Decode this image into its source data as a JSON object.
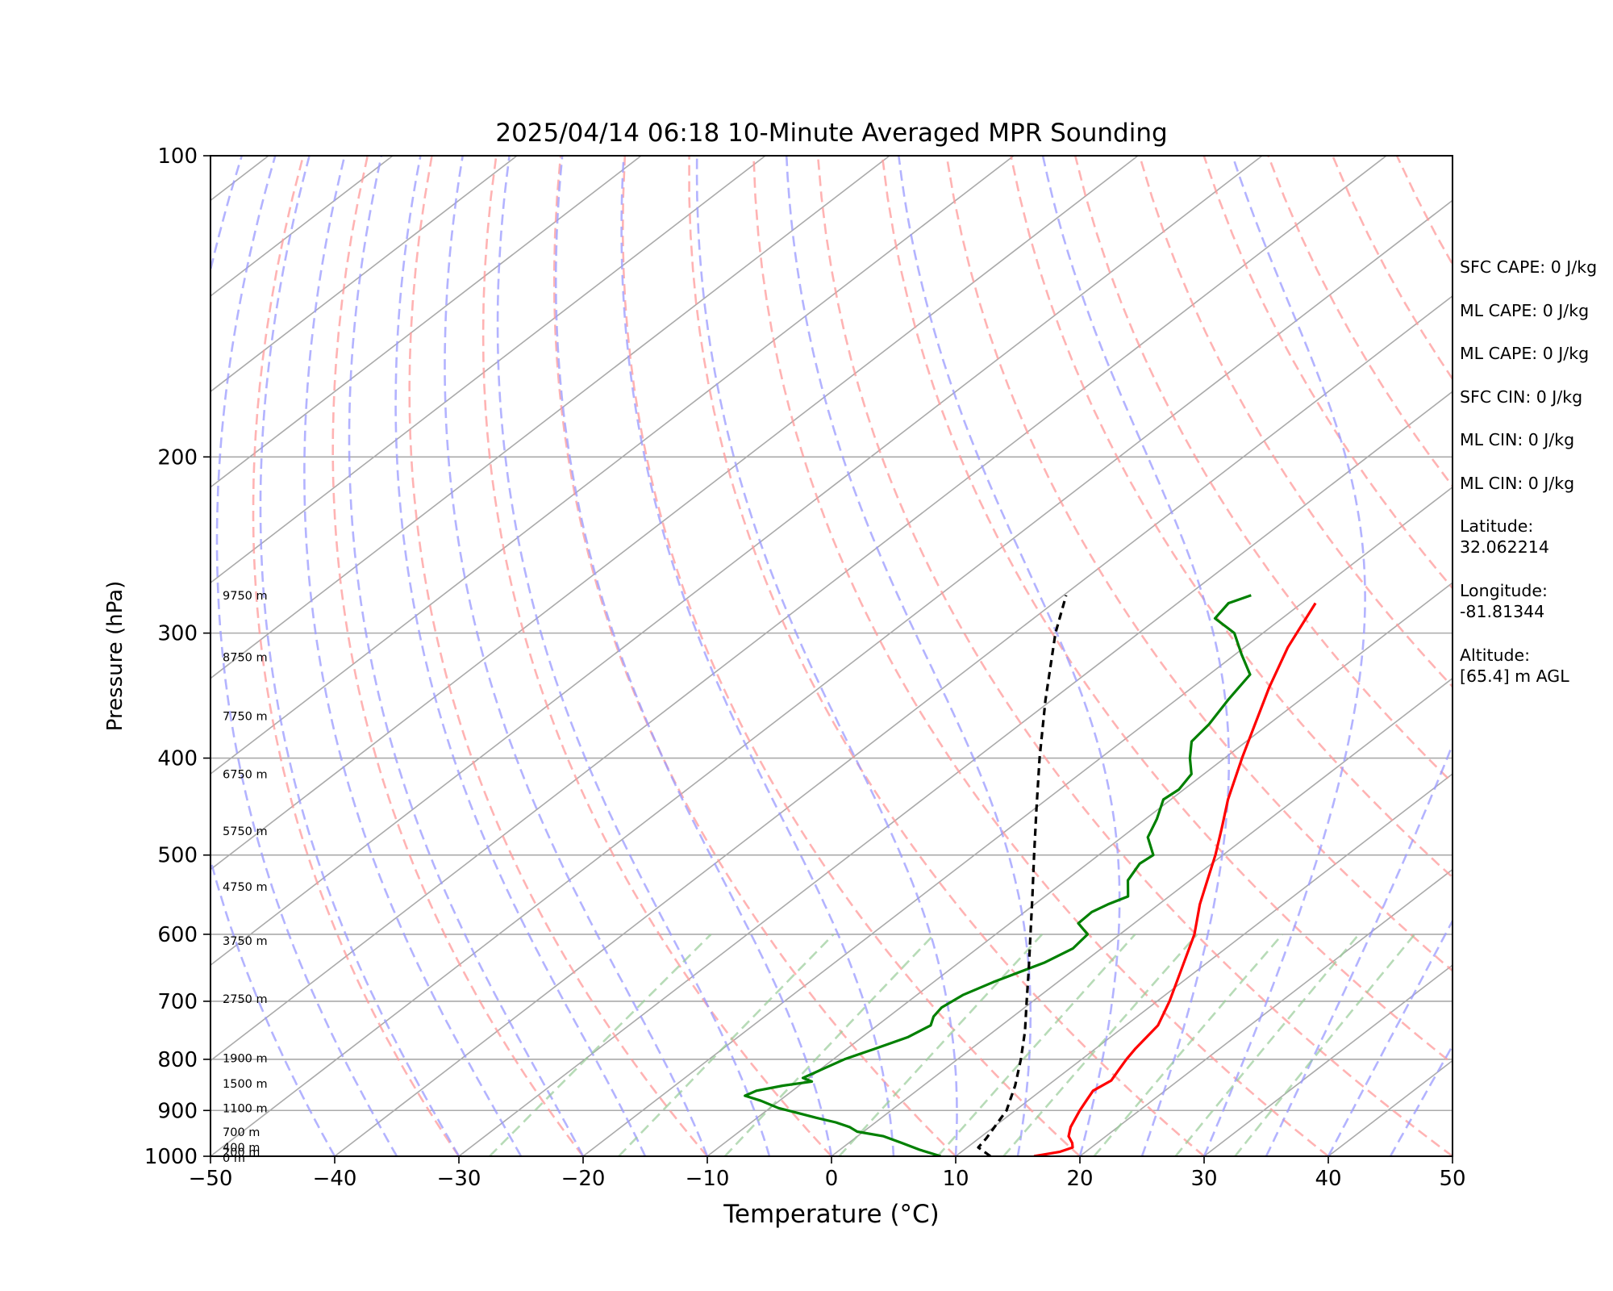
{
  "chart_data": {
    "type": "line",
    "diagram": "skew-T log-P",
    "title": "2025/04/14 06:18 10-Minute Averaged MPR Sounding",
    "xlabel": "Temperature (°C)",
    "ylabel": "Pressure (hPa)",
    "xlim": [
      -50,
      50
    ],
    "ylim": [
      1000,
      100
    ],
    "y_scale": "log",
    "x_ticks": [
      "−50",
      "−40",
      "−30",
      "−20",
      "−10",
      "0",
      "10",
      "20",
      "30",
      "40",
      "50"
    ],
    "y_ticks": [
      "100",
      "200",
      "300",
      "400",
      "500",
      "600",
      "700",
      "800",
      "900",
      "1000"
    ],
    "grid": true,
    "series": [
      {
        "color": "#ff0000",
        "points": [
          [
            1000,
            16.3
          ],
          [
            990,
            17.9
          ],
          [
            980,
            18.5
          ],
          [
            970,
            18.0
          ],
          [
            955,
            17.0
          ],
          [
            935,
            16.2
          ],
          [
            900,
            15.2
          ],
          [
            880,
            14.7
          ],
          [
            860,
            14.2
          ],
          [
            840,
            14.6
          ],
          [
            820,
            14.1
          ],
          [
            800,
            13.6
          ],
          [
            780,
            13.2
          ],
          [
            760,
            12.9
          ],
          [
            740,
            12.6
          ],
          [
            700,
            11.0
          ],
          [
            650,
            8.6
          ],
          [
            600,
            6.0
          ],
          [
            560,
            3.3
          ],
          [
            530,
            1.4
          ],
          [
            500,
            -0.6
          ],
          [
            470,
            -2.9
          ],
          [
            440,
            -5.4
          ],
          [
            400,
            -8.6
          ],
          [
            370,
            -11.1
          ],
          [
            340,
            -13.8
          ],
          [
            310,
            -16.5
          ],
          [
            280,
            -18.9
          ]
        ]
      },
      {
        "color": "#008000",
        "points": [
          [
            1000,
            8.8
          ],
          [
            985,
            6.4
          ],
          [
            970,
            4.3
          ],
          [
            955,
            2.1
          ],
          [
            945,
            -0.5
          ],
          [
            935,
            -1.6
          ],
          [
            925,
            -3.2
          ],
          [
            915,
            -5.3
          ],
          [
            905,
            -7.3
          ],
          [
            895,
            -9.3
          ],
          [
            880,
            -11.5
          ],
          [
            870,
            -13.3
          ],
          [
            860,
            -12.9
          ],
          [
            850,
            -11.3
          ],
          [
            842,
            -9.4
          ],
          [
            835,
            -10.5
          ],
          [
            820,
            -9.9
          ],
          [
            800,
            -9.1
          ],
          [
            780,
            -7.7
          ],
          [
            760,
            -6.3
          ],
          [
            740,
            -5.7
          ],
          [
            725,
            -6.4
          ],
          [
            710,
            -6.7
          ],
          [
            690,
            -6.3
          ],
          [
            670,
            -5.2
          ],
          [
            640,
            -3.1
          ],
          [
            620,
            -2.3
          ],
          [
            600,
            -2.6
          ],
          [
            585,
            -4.5
          ],
          [
            570,
            -4.6
          ],
          [
            560,
            -4.1
          ],
          [
            550,
            -3.3
          ],
          [
            530,
            -5.0
          ],
          [
            510,
            -5.8
          ],
          [
            500,
            -5.6
          ],
          [
            480,
            -7.9
          ],
          [
            460,
            -9.1
          ],
          [
            440,
            -10.6
          ],
          [
            430,
            -10.4
          ],
          [
            415,
            -11.0
          ],
          [
            400,
            -12.8
          ],
          [
            385,
            -14.4
          ],
          [
            370,
            -14.8
          ],
          [
            350,
            -15.8
          ],
          [
            330,
            -16.7
          ],
          [
            315,
            -19.5
          ],
          [
            300,
            -22.3
          ],
          [
            290,
            -25.4
          ],
          [
            280,
            -25.9
          ],
          [
            275,
            -24.9
          ]
        ]
      },
      {
        "color": "#000000",
        "dashed": true,
        "points": [
          [
            1000,
            12.8
          ],
          [
            980,
            10.9
          ],
          [
            960,
            10.6
          ],
          [
            900,
            9.3
          ],
          [
            850,
            7.4
          ],
          [
            800,
            5.1
          ],
          [
            750,
            2.5
          ],
          [
            700,
            -0.5
          ],
          [
            650,
            -3.7
          ],
          [
            600,
            -7.2
          ],
          [
            550,
            -11.0
          ],
          [
            500,
            -15.2
          ],
          [
            450,
            -19.8
          ],
          [
            400,
            -24.9
          ],
          [
            350,
            -30.5
          ],
          [
            300,
            -36.7
          ],
          [
            275,
            -39.8
          ]
        ]
      }
    ],
    "height_labels": [
      {
        "text": "9750 m",
        "p": 275
      },
      {
        "text": "8750 m",
        "p": 317
      },
      {
        "text": "7750 m",
        "p": 363
      },
      {
        "text": "6750 m",
        "p": 415
      },
      {
        "text": "5750 m",
        "p": 473
      },
      {
        "text": "4750 m",
        "p": 538
      },
      {
        "text": "3750 m",
        "p": 609
      },
      {
        "text": "2750 m",
        "p": 696
      },
      {
        "text": "1900 m",
        "p": 798
      },
      {
        "text": "1500 m",
        "p": 846
      },
      {
        "text": "1100 m",
        "p": 895
      },
      {
        "text": "700 m",
        "p": 946
      },
      {
        "text": "400 m",
        "p": 980
      },
      {
        "text": "200 m",
        "p": 991
      },
      {
        "text": "0 m",
        "p": 1004
      }
    ],
    "reference_lines": {
      "isotherms_color": "#aaaaaa",
      "dry_adiabats_color": "#ff9999",
      "moist_adiabats_color": "#9999ff",
      "mixing_ratio_color": "#99cc99"
    }
  },
  "stats": {
    "sfc_cape": "SFC CAPE: 0 J/kg",
    "ml_cape_1": "ML CAPE: 0 J/kg",
    "ml_cape_2": "ML CAPE: 0 J/kg",
    "sfc_cin": "SFC CIN: 0 J/kg",
    "ml_cin_1": "ML CIN: 0 J/kg",
    "ml_cin_2": "ML CIN: 0 J/kg",
    "latitude_label": "Latitude:",
    "latitude_value": "32.062214",
    "longitude_label": "Longitude:",
    "longitude_value": "-81.81344",
    "altitude_label": "Altitude:",
    "altitude_value": "[65.4] m AGL"
  }
}
